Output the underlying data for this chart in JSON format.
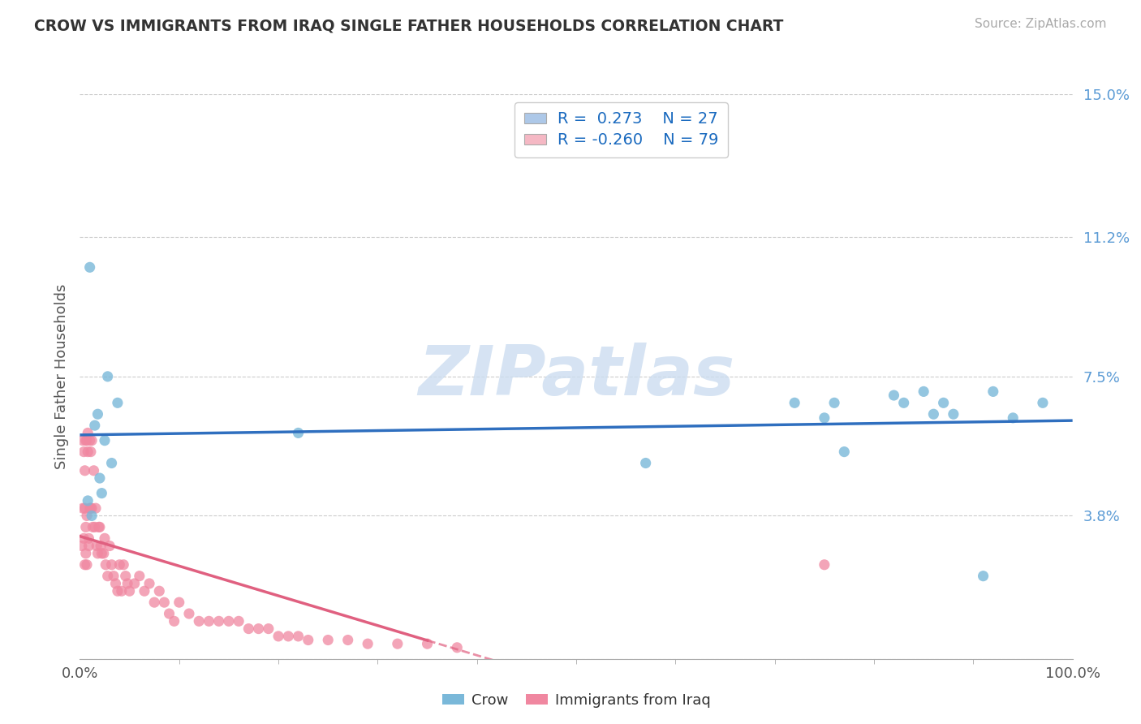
{
  "title": "CROW VS IMMIGRANTS FROM IRAQ SINGLE FATHER HOUSEHOLDS CORRELATION CHART",
  "source": "Source: ZipAtlas.com",
  "ylabel": "Single Father Households",
  "xlim": [
    0,
    1.0
  ],
  "ylim": [
    0,
    0.15
  ],
  "yticks": [
    0.0,
    0.038,
    0.075,
    0.112,
    0.15
  ],
  "ytick_labels": [
    "",
    "3.8%",
    "7.5%",
    "11.2%",
    "15.0%"
  ],
  "xtick_labels": [
    "0.0%",
    "100.0%"
  ],
  "watermark": "ZIPatlas",
  "legend_R1": "0.273",
  "legend_N1": "27",
  "legend_R2": "-0.260",
  "legend_N2": "79",
  "legend_color1": "#adc8e8",
  "legend_color2": "#f5b8c4",
  "crow_color": "#7ab8d9",
  "iraq_color": "#f087a0",
  "crow_line_color": "#2f6fbf",
  "iraq_line_color": "#e06080",
  "crow_scatter_x": [
    0.008,
    0.01,
    0.012,
    0.015,
    0.018,
    0.02,
    0.022,
    0.025,
    0.028,
    0.032,
    0.038,
    0.22,
    0.57,
    0.72,
    0.75,
    0.76,
    0.77,
    0.82,
    0.83,
    0.85,
    0.86,
    0.87,
    0.88,
    0.91,
    0.92,
    0.94,
    0.97
  ],
  "crow_scatter_y": [
    0.042,
    0.104,
    0.038,
    0.062,
    0.065,
    0.048,
    0.044,
    0.058,
    0.075,
    0.052,
    0.068,
    0.06,
    0.052,
    0.068,
    0.064,
    0.068,
    0.055,
    0.07,
    0.068,
    0.071,
    0.065,
    0.068,
    0.065,
    0.022,
    0.071,
    0.064,
    0.068
  ],
  "iraq_scatter_x": [
    0.002,
    0.003,
    0.003,
    0.004,
    0.004,
    0.005,
    0.005,
    0.005,
    0.006,
    0.006,
    0.006,
    0.007,
    0.007,
    0.007,
    0.008,
    0.008,
    0.009,
    0.009,
    0.01,
    0.01,
    0.011,
    0.011,
    0.012,
    0.012,
    0.013,
    0.014,
    0.015,
    0.016,
    0.017,
    0.018,
    0.019,
    0.02,
    0.021,
    0.022,
    0.024,
    0.025,
    0.026,
    0.028,
    0.03,
    0.032,
    0.034,
    0.036,
    0.038,
    0.04,
    0.042,
    0.044,
    0.046,
    0.048,
    0.05,
    0.055,
    0.06,
    0.065,
    0.07,
    0.075,
    0.08,
    0.085,
    0.09,
    0.095,
    0.1,
    0.11,
    0.12,
    0.13,
    0.14,
    0.15,
    0.16,
    0.17,
    0.18,
    0.19,
    0.2,
    0.21,
    0.22,
    0.23,
    0.25,
    0.27,
    0.29,
    0.32,
    0.35,
    0.38,
    0.75
  ],
  "iraq_scatter_y": [
    0.03,
    0.04,
    0.058,
    0.032,
    0.055,
    0.025,
    0.04,
    0.05,
    0.058,
    0.035,
    0.028,
    0.058,
    0.038,
    0.025,
    0.055,
    0.06,
    0.032,
    0.03,
    0.04,
    0.058,
    0.04,
    0.055,
    0.04,
    0.058,
    0.035,
    0.05,
    0.035,
    0.04,
    0.03,
    0.028,
    0.035,
    0.035,
    0.03,
    0.028,
    0.028,
    0.032,
    0.025,
    0.022,
    0.03,
    0.025,
    0.022,
    0.02,
    0.018,
    0.025,
    0.018,
    0.025,
    0.022,
    0.02,
    0.018,
    0.02,
    0.022,
    0.018,
    0.02,
    0.015,
    0.018,
    0.015,
    0.012,
    0.01,
    0.015,
    0.012,
    0.01,
    0.01,
    0.01,
    0.01,
    0.01,
    0.008,
    0.008,
    0.008,
    0.006,
    0.006,
    0.006,
    0.005,
    0.005,
    0.005,
    0.004,
    0.004,
    0.004,
    0.003,
    0.025
  ]
}
